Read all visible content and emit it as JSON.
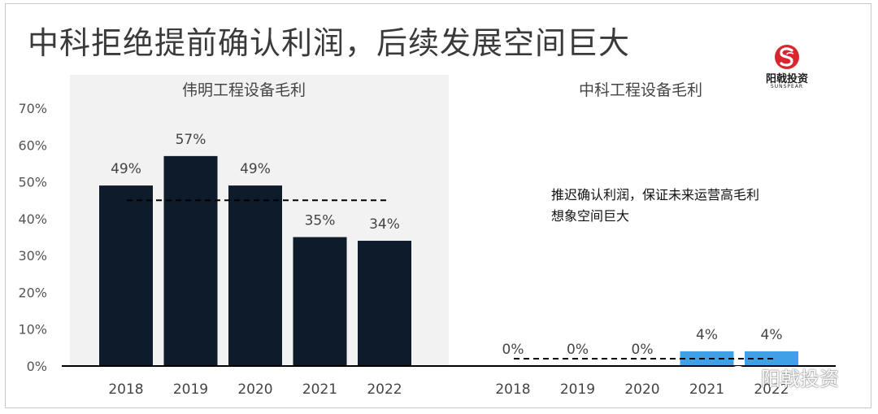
{
  "title": "中科拒绝提前确认利润，后续发展空间巨大",
  "logo": {
    "icon": "sunspear-logo-icon",
    "text": "阳戟投资",
    "subtext": "SUNSPEAR"
  },
  "watermark": {
    "icon": "wechat-icon",
    "text": "阳戟投资"
  },
  "colors": {
    "left_bar": "#0d1b2a",
    "right_bar": "#3fa0e8",
    "panel_bg": "#f2f2f2"
  },
  "annotation": [
    "推迟确认利润，保证未来运营高毛利",
    "想象空间巨大"
  ],
  "chart_data": {
    "type": "bar",
    "ylim": [
      0,
      70
    ],
    "yticks": [
      "0%",
      "10%",
      "20%",
      "30%",
      "40%",
      "50%",
      "60%",
      "70%"
    ],
    "panels": [
      {
        "title": "伟明工程设备毛利",
        "categories": [
          "2018",
          "2019",
          "2020",
          "2021",
          "2022"
        ],
        "values": [
          49,
          57,
          49,
          35,
          34
        ],
        "labels": [
          "49%",
          "57%",
          "49%",
          "35%",
          "34%"
        ],
        "average": 45
      },
      {
        "title": "中科工程设备毛利",
        "categories": [
          "2018",
          "2019",
          "2020",
          "2021",
          "2022"
        ],
        "values": [
          0,
          0,
          0,
          4,
          4
        ],
        "labels": [
          "0%",
          "0%",
          "0%",
          "4%",
          "4%"
        ],
        "average": 2
      }
    ]
  }
}
